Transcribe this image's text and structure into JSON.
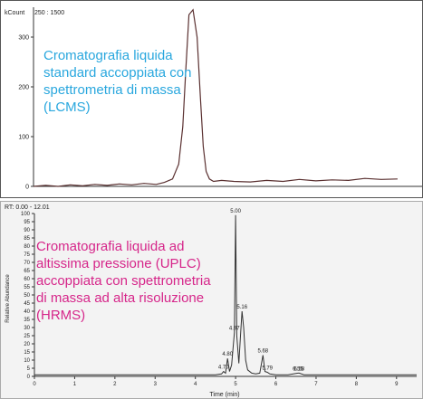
{
  "chart_data": [
    {
      "type": "line",
      "title": "",
      "ylabel": "kCount",
      "range_label": "250 : 1500",
      "ylim": [
        0,
        360
      ],
      "yticks": [
        0,
        100,
        200,
        300
      ],
      "caption": [
        "Cromatografia liquida",
        "standard accoppiata con",
        "spettrometria di massa",
        "(LCMS)"
      ],
      "caption_color": "#29a7de",
      "line_color": "#5a3030",
      "series": [
        {
          "x": [
            0,
            0.3,
            0.6,
            0.9,
            1.2,
            1.5,
            1.8,
            2.1,
            2.4,
            2.7,
            3.0,
            3.2,
            3.4,
            3.55,
            3.65,
            3.72,
            3.8,
            3.9,
            4.0,
            4.08,
            4.15,
            4.22,
            4.3,
            4.4,
            4.6,
            4.9,
            5.3,
            5.7,
            6.1,
            6.5,
            6.9,
            7.3,
            7.7,
            8.1,
            8.5,
            8.9
          ],
          "values": [
            0,
            2,
            0,
            3,
            1,
            4,
            2,
            5,
            3,
            6,
            4,
            8,
            15,
            45,
            120,
            230,
            345,
            355,
            300,
            180,
            80,
            30,
            15,
            10,
            12,
            10,
            9,
            12,
            10,
            14,
            11,
            13,
            12,
            16,
            14,
            15
          ]
        }
      ]
    },
    {
      "type": "line",
      "range_label": "RT: 0.00 - 12.01",
      "ylabel": "Relative Abundance",
      "xlabel": "Time (min)",
      "xlim": [
        0,
        9.5
      ],
      "ylim": [
        0,
        100
      ],
      "xticks": [
        0,
        1,
        2,
        3,
        4,
        5,
        6,
        7,
        8,
        9
      ],
      "yticks": [
        0,
        5,
        10,
        15,
        20,
        25,
        30,
        35,
        40,
        45,
        50,
        55,
        60,
        65,
        70,
        75,
        80,
        85,
        90,
        95,
        100
      ],
      "caption": [
        "Cromatografia liquida ad",
        "altissima pressione (UPLC)",
        "accoppiata con spettrometria",
        "di massa ad alta risoluzione",
        "(HRMS)"
      ],
      "caption_color": "#d6268a",
      "line_color": "#333333",
      "series": [
        {
          "x": [
            0,
            1,
            2,
            3,
            4,
            4.5,
            4.65,
            4.7,
            4.75,
            4.8,
            4.85,
            4.9,
            4.97,
            5.0,
            5.03,
            5.08,
            5.12,
            5.16,
            5.2,
            5.25,
            5.3,
            5.4,
            5.5,
            5.6,
            5.68,
            5.73,
            5.79,
            5.85,
            6.0,
            6.3,
            6.55,
            6.58,
            6.7,
            7,
            8,
            9,
            9.5
          ],
          "values": [
            1,
            1,
            1,
            1,
            1,
            1,
            1.5,
            3,
            2,
            11,
            3,
            7,
            27,
            99,
            25,
            8,
            24,
            40,
            30,
            10,
            4,
            2,
            1.5,
            2,
            13,
            3,
            2.5,
            1.5,
            1,
            1,
            2,
            2,
            1,
            1,
            1,
            1,
            1
          ]
        }
      ],
      "peak_labels": [
        {
          "x": 4.7,
          "y": 3,
          "label": "4.70"
        },
        {
          "x": 4.8,
          "y": 11,
          "label": "4.80"
        },
        {
          "x": 4.97,
          "y": 27,
          "label": "4.97"
        },
        {
          "x": 5.0,
          "y": 99,
          "label": "5.00"
        },
        {
          "x": 5.16,
          "y": 40,
          "label": "5.16"
        },
        {
          "x": 5.68,
          "y": 13,
          "label": "5.68"
        },
        {
          "x": 5.79,
          "y": 2.5,
          "label": "5.79"
        },
        {
          "x": 6.55,
          "y": 2,
          "label": "6.55"
        },
        {
          "x": 6.58,
          "y": 2,
          "label": "6.58"
        }
      ]
    }
  ]
}
